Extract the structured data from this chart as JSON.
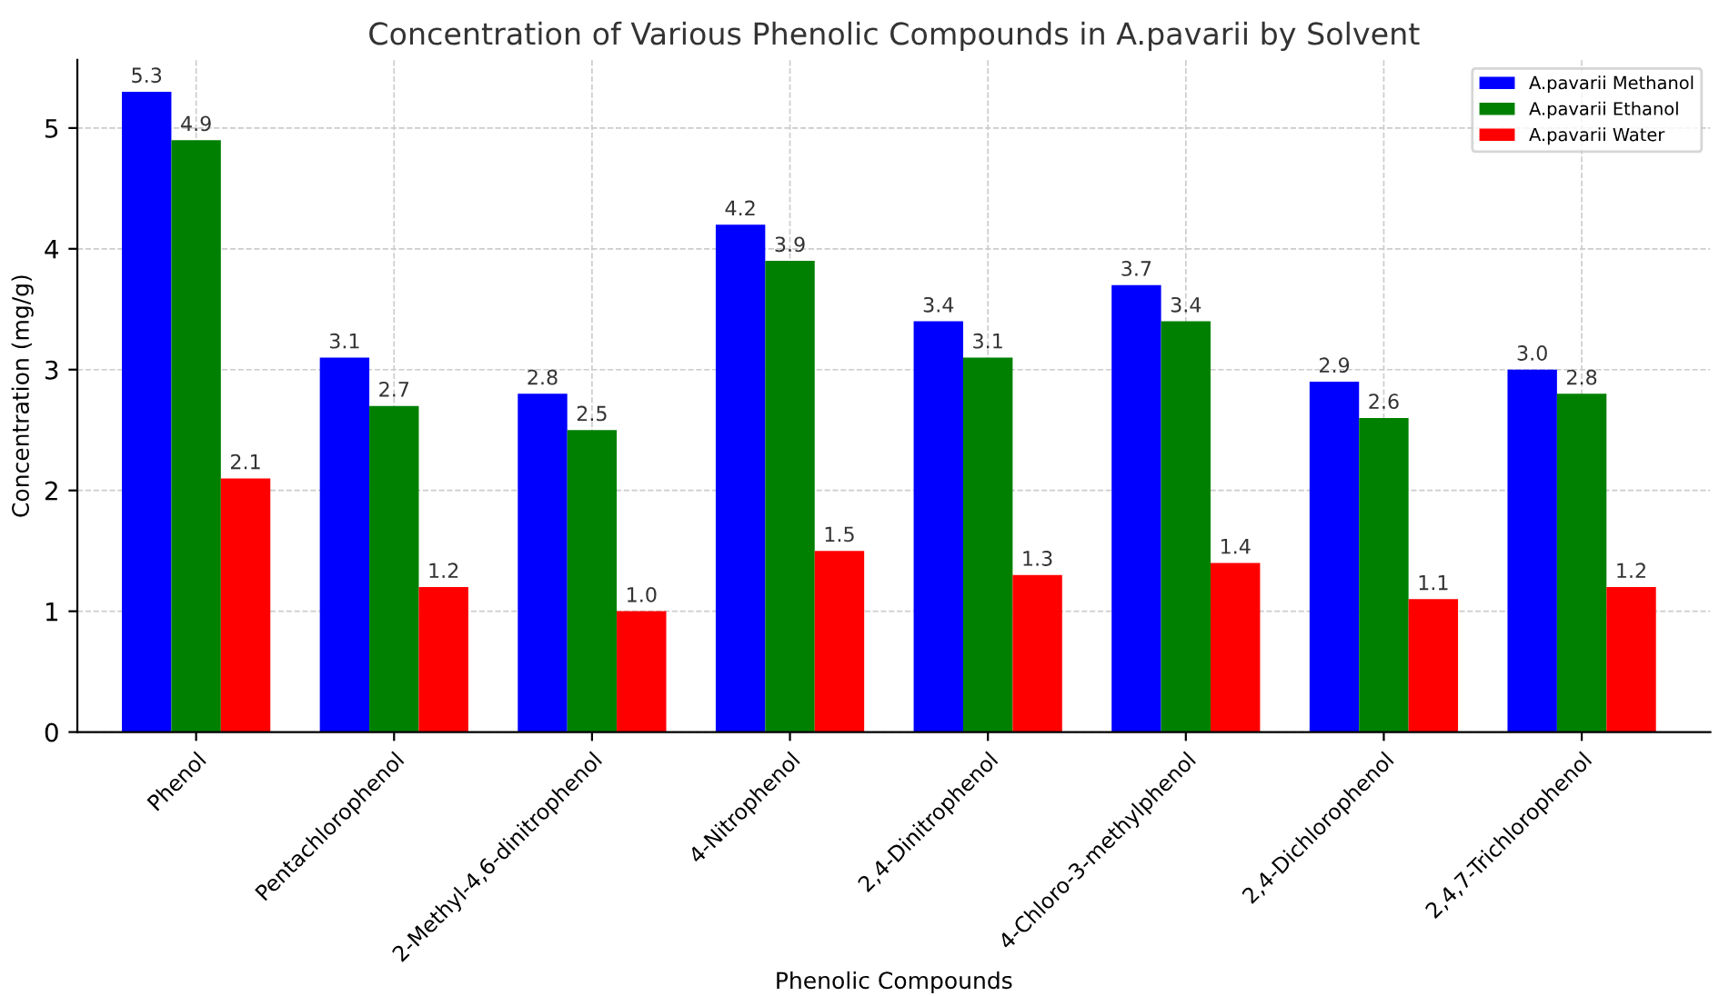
{
  "chart_data": {
    "type": "bar",
    "title": "Concentration of Various Phenolic Compounds in A.pavarii by Solvent",
    "xlabel": "Phenolic Compounds",
    "ylabel": "Concentration (mg/g)",
    "categories": [
      "Phenol",
      "Pentachlorophenol",
      "2-Methyl-4,6-dinitrophenol",
      "4-Nitrophenol",
      "2,4-Dinitrophenol",
      "4-Chloro-3-methylphenol",
      "2,4-Dichlorophenol",
      "2,4,7-Trichlorophenol"
    ],
    "series": [
      {
        "name": "A.pavarii Methanol",
        "color": "#0000ff",
        "values": [
          5.3,
          3.1,
          2.8,
          4.2,
          3.4,
          3.7,
          2.9,
          3.0
        ],
        "value_labels": [
          "5.3",
          "3.1",
          "2.8",
          "4.2",
          "3.4",
          "3.7",
          "2.9",
          "3.0"
        ]
      },
      {
        "name": "A.pavarii Ethanol",
        "color": "#008000",
        "values": [
          4.9,
          2.7,
          2.5,
          3.9,
          3.1,
          3.4,
          2.6,
          2.8
        ],
        "value_labels": [
          "4.9",
          "2.7",
          "2.5",
          "3.9",
          "3.1",
          "3.4",
          "2.6",
          "2.8"
        ]
      },
      {
        "name": "A.pavarii Water",
        "color": "#ff0000",
        "values": [
          2.1,
          1.2,
          1.0,
          1.5,
          1.3,
          1.4,
          1.1,
          1.2
        ],
        "value_labels": [
          "2.1",
          "1.2",
          "1.0",
          "1.5",
          "1.3",
          "1.4",
          "1.1",
          "1.2"
        ]
      }
    ],
    "ylim": [
      0,
      5.565
    ],
    "yticks": [
      0,
      1,
      2,
      3,
      4,
      5
    ],
    "grid": true,
    "legend": "top right"
  }
}
